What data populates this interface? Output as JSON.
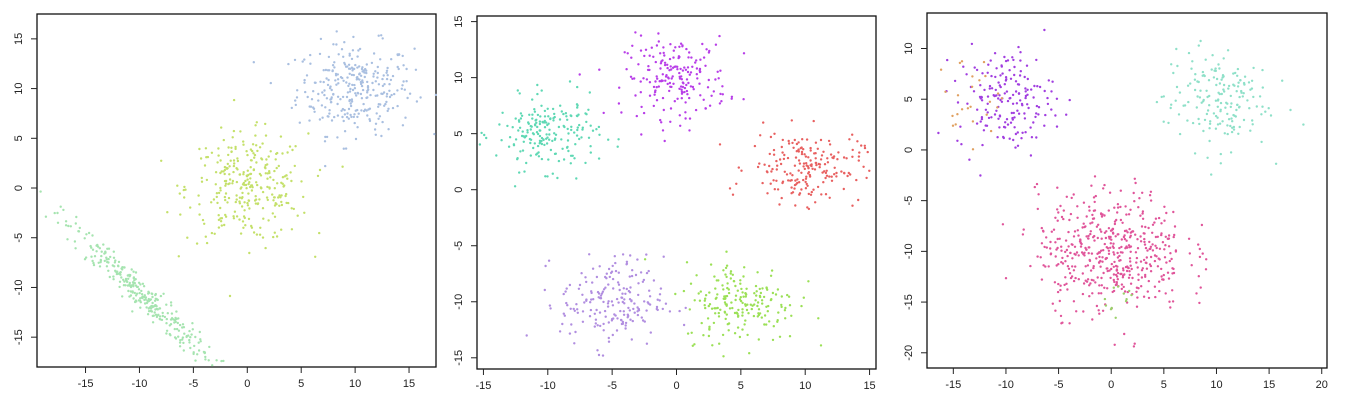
{
  "chart_data": [
    {
      "type": "scatter",
      "title": "",
      "xlabel": "",
      "ylabel": "",
      "xlim": [
        -19.5,
        17.5
      ],
      "ylim": [
        -18,
        17.5
      ],
      "xticks": [
        -15,
        -10,
        -5,
        0,
        5,
        10,
        15
      ],
      "yticks": [
        -15,
        -10,
        -5,
        0,
        5,
        10,
        15
      ],
      "grid": false,
      "legend": "none",
      "series": [
        {
          "color": "#a9bfe0",
          "center": [
            10,
            10
          ],
          "spread": [
            2.7,
            2.3
          ],
          "count": 300,
          "shape": "blob"
        },
        {
          "color": "#c4e06a",
          "center": [
            0,
            0
          ],
          "spread": [
            2.8,
            2.7
          ],
          "count": 300,
          "shape": "blob"
        },
        {
          "color": "#a6e4b0",
          "center": [
            -10,
            -10.5
          ],
          "spread": [
            3.5,
            0.9
          ],
          "count": 300,
          "shape": "line",
          "slope": -1
        }
      ]
    },
    {
      "type": "scatter",
      "title": "",
      "xlabel": "",
      "ylabel": "",
      "xlim": [
        -15.5,
        15.5
      ],
      "ylim": [
        -16,
        15.5
      ],
      "xticks": [
        -15,
        -10,
        -5,
        0,
        5,
        10,
        15
      ],
      "yticks": [
        -15,
        -10,
        -5,
        0,
        5,
        10,
        15
      ],
      "grid": false,
      "legend": "none",
      "series": [
        {
          "color": "#b83ee8",
          "center": [
            0,
            10
          ],
          "spread": [
            2.0,
            1.8
          ],
          "count": 200,
          "shape": "blob"
        },
        {
          "color": "#5fd8b4",
          "center": [
            -10,
            5
          ],
          "spread": [
            2.0,
            1.6
          ],
          "count": 200,
          "shape": "blob"
        },
        {
          "color": "#e86060",
          "center": [
            10,
            2
          ],
          "spread": [
            2.2,
            1.6
          ],
          "count": 200,
          "shape": "blob"
        },
        {
          "color": "#b18ee0",
          "center": [
            -5,
            -10
          ],
          "spread": [
            2.0,
            2.0
          ],
          "count": 200,
          "shape": "blob"
        },
        {
          "color": "#9be056",
          "center": [
            5,
            -10
          ],
          "spread": [
            2.2,
            1.8
          ],
          "count": 200,
          "shape": "blob"
        }
      ]
    },
    {
      "type": "scatter",
      "title": "",
      "xlabel": "",
      "ylabel": "",
      "xlim": [
        -17.5,
        20.5
      ],
      "ylim": [
        -21.5,
        13.5
      ],
      "xticks": [
        -15,
        -10,
        -5,
        0,
        5,
        10,
        15,
        20
      ],
      "yticks": [
        -20,
        -15,
        -10,
        -5,
        0,
        5,
        10
      ],
      "grid": false,
      "legend": "none",
      "series": [
        {
          "color": "#a13ee0",
          "center": [
            -10,
            5
          ],
          "spread": [
            2.3,
            2.5
          ],
          "count": 180,
          "shape": "blob"
        },
        {
          "color": "#e0a060",
          "center": [
            -13.5,
            5
          ],
          "spread": [
            1.5,
            2.2
          ],
          "count": 25,
          "shape": "blob"
        },
        {
          "color": "#8ee0c8",
          "center": [
            10,
            5
          ],
          "spread": [
            2.5,
            2.5
          ],
          "count": 180,
          "shape": "blob"
        },
        {
          "color": "#e0559a",
          "center": [
            0,
            -10
          ],
          "spread": [
            3.5,
            3.0
          ],
          "count": 500,
          "shape": "blob"
        },
        {
          "color": "#9ad06a",
          "center": [
            1,
            -14.5
          ],
          "spread": [
            0.8,
            0.8
          ],
          "count": 12,
          "shape": "blob"
        }
      ]
    }
  ]
}
